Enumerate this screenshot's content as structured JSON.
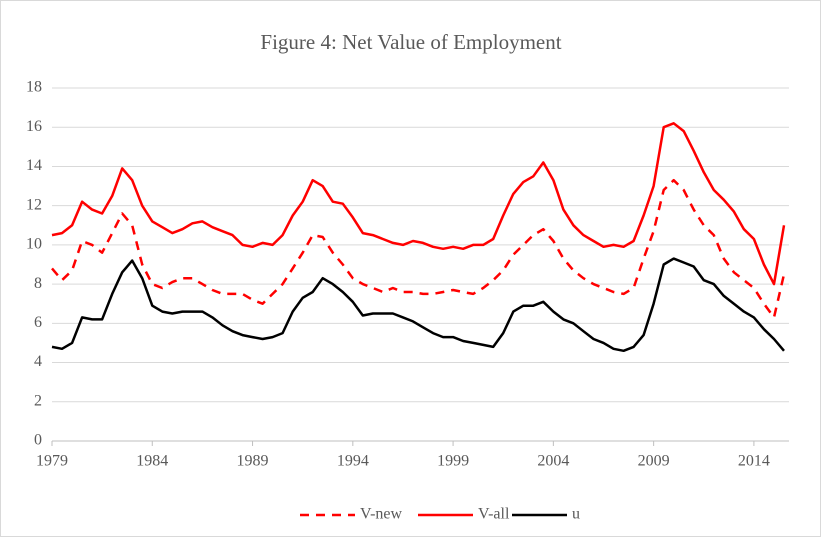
{
  "chart_data": {
    "type": "line",
    "title": "Figure 4: Net Value of Employment",
    "x": [
      1979.0,
      1979.5,
      1980.0,
      1980.5,
      1981.0,
      1981.5,
      1982.0,
      1982.5,
      1983.0,
      1983.5,
      1984.0,
      1984.5,
      1985.0,
      1985.5,
      1986.0,
      1986.5,
      1987.0,
      1987.5,
      1988.0,
      1988.5,
      1989.0,
      1989.5,
      1990.0,
      1990.5,
      1991.0,
      1991.5,
      1992.0,
      1992.5,
      1993.0,
      1993.5,
      1994.0,
      1994.5,
      1995.0,
      1995.5,
      1996.0,
      1996.5,
      1997.0,
      1997.5,
      1998.0,
      1998.5,
      1999.0,
      1999.5,
      2000.0,
      2000.5,
      2001.0,
      2001.5,
      2002.0,
      2002.5,
      2003.0,
      2003.5,
      2004.0,
      2004.5,
      2005.0,
      2005.5,
      2006.0,
      2006.5,
      2007.0,
      2007.5,
      2008.0,
      2008.5,
      2009.0,
      2009.5,
      2010.0,
      2010.5,
      2011.0,
      2011.5,
      2012.0,
      2012.5,
      2013.0,
      2013.5,
      2014.0,
      2014.5,
      2015.0,
      2015.5
    ],
    "series": [
      {
        "name": "V-new",
        "color": "#ff0000",
        "line_style": "dashed",
        "values": [
          8.8,
          8.2,
          8.7,
          10.2,
          10.0,
          9.6,
          10.6,
          11.6,
          11.0,
          9.0,
          8.0,
          7.8,
          8.1,
          8.3,
          8.3,
          8.0,
          7.7,
          7.5,
          7.5,
          7.5,
          7.2,
          7.0,
          7.5,
          8.0,
          8.8,
          9.6,
          10.5,
          10.4,
          9.6,
          9.0,
          8.3,
          8.0,
          7.8,
          7.6,
          7.8,
          7.6,
          7.6,
          7.5,
          7.5,
          7.6,
          7.7,
          7.6,
          7.5,
          7.8,
          8.2,
          8.7,
          9.5,
          10.0,
          10.5,
          10.8,
          10.2,
          9.3,
          8.7,
          8.3,
          8.0,
          7.8,
          7.6,
          7.5,
          7.8,
          9.3,
          10.7,
          12.8,
          13.3,
          12.8,
          11.8,
          11.0,
          10.5,
          9.3,
          8.6,
          8.2,
          7.8,
          7.0,
          6.3,
          8.5
        ]
      },
      {
        "name": "V-all",
        "color": "#ff0000",
        "line_style": "solid",
        "values": [
          10.5,
          10.6,
          11.0,
          12.2,
          11.8,
          11.6,
          12.5,
          13.9,
          13.3,
          12.0,
          11.2,
          10.9,
          10.6,
          10.8,
          11.1,
          11.2,
          10.9,
          10.7,
          10.5,
          10.0,
          9.9,
          10.1,
          10.0,
          10.5,
          11.5,
          12.2,
          13.3,
          13.0,
          12.2,
          12.1,
          11.4,
          10.6,
          10.5,
          10.3,
          10.1,
          10.0,
          10.2,
          10.1,
          9.9,
          9.8,
          9.9,
          9.8,
          10.0,
          10.0,
          10.3,
          11.5,
          12.6,
          13.2,
          13.5,
          14.2,
          13.3,
          11.8,
          11.0,
          10.5,
          10.2,
          9.9,
          10.0,
          9.9,
          10.2,
          11.5,
          13.0,
          16.0,
          16.2,
          15.8,
          14.8,
          13.7,
          12.8,
          12.3,
          11.7,
          10.8,
          10.3,
          9.0,
          8.0,
          11.0
        ]
      },
      {
        "name": "u",
        "color": "#000000",
        "line_style": "solid",
        "values": [
          4.8,
          4.7,
          5.0,
          6.3,
          6.2,
          6.2,
          7.5,
          8.6,
          9.2,
          8.3,
          6.9,
          6.6,
          6.5,
          6.6,
          6.6,
          6.6,
          6.3,
          5.9,
          5.6,
          5.4,
          5.3,
          5.2,
          5.3,
          5.5,
          6.6,
          7.3,
          7.6,
          8.3,
          8.0,
          7.6,
          7.1,
          6.4,
          6.5,
          6.5,
          6.5,
          6.3,
          6.1,
          5.8,
          5.5,
          5.3,
          5.3,
          5.1,
          5.0,
          4.9,
          4.8,
          5.5,
          6.6,
          6.9,
          6.9,
          7.1,
          6.6,
          6.2,
          6.0,
          5.6,
          5.2,
          5.0,
          4.7,
          4.6,
          4.8,
          5.4,
          7.0,
          9.0,
          9.3,
          9.1,
          8.9,
          8.2,
          8.0,
          7.4,
          7.0,
          6.6,
          6.3,
          5.7,
          5.2,
          4.6
        ]
      }
    ],
    "xlim": [
      1979,
      2015.75
    ],
    "xticks": [
      1979,
      1984,
      1989,
      1994,
      1999,
      2004,
      2009,
      2014
    ],
    "ylim": [
      0,
      18
    ],
    "yticks": [
      0,
      2,
      4,
      6,
      8,
      10,
      12,
      14,
      16,
      18
    ],
    "grid": true,
    "legend": "bottom"
  }
}
